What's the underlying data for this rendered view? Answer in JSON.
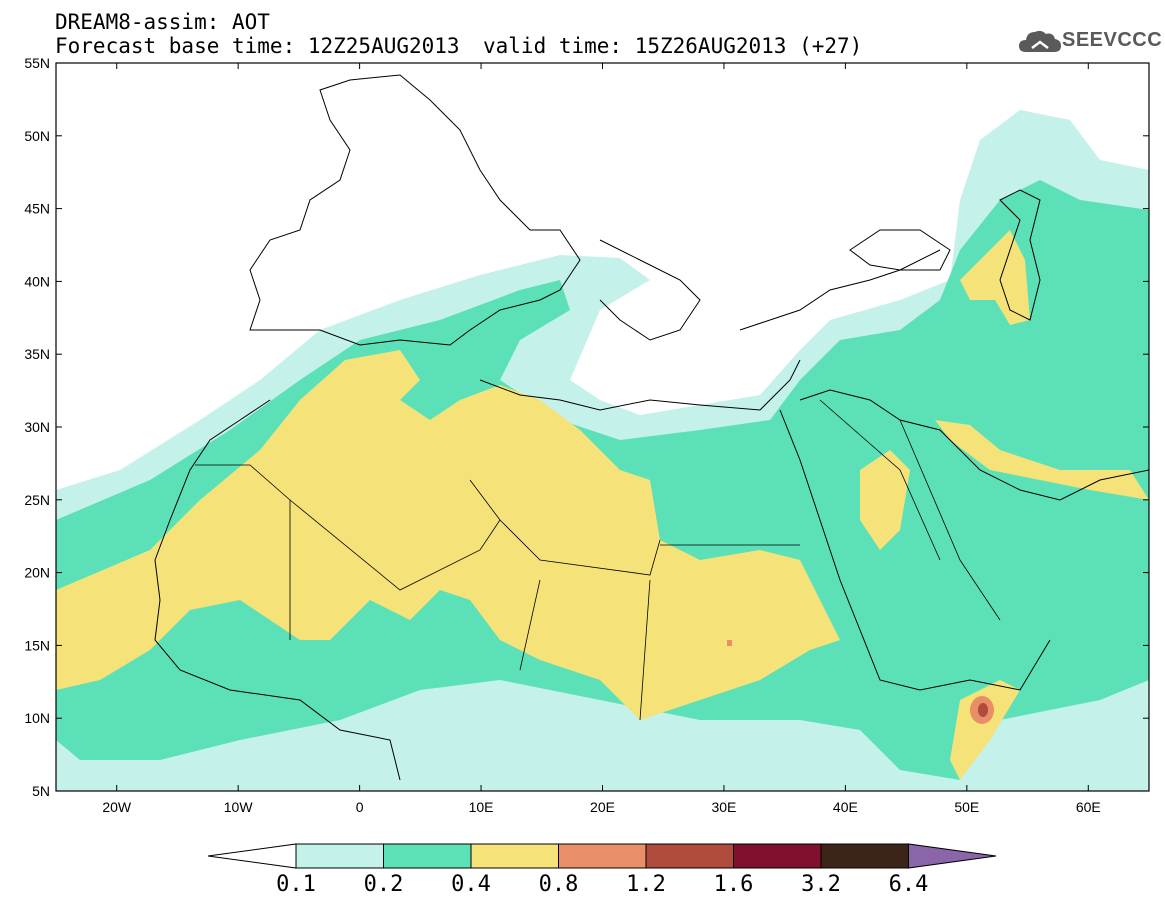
{
  "header": {
    "title": "DREAM8-assim: AOT",
    "base_time": "Forecast base time: 12Z25AUG2013",
    "valid_time": "valid time: 15Z26AUG2013 (+27)",
    "logo_text": "SEEVCCC",
    "logo_icon": "cloud-icon"
  },
  "map": {
    "lat_labels": [
      "55N",
      "50N",
      "45N",
      "40N",
      "35N",
      "30N",
      "25N",
      "20N",
      "15N",
      "10N",
      "5N"
    ],
    "lon_labels": [
      "20W",
      "10W",
      "0",
      "10E",
      "20E",
      "30E",
      "40E",
      "50E",
      "60E"
    ],
    "lon_range": [
      -25,
      65
    ],
    "lat_range": [
      5,
      55
    ]
  },
  "colorbar": {
    "levels": [
      "0.1",
      "0.2",
      "0.4",
      "0.8",
      "1.2",
      "1.6",
      "3.2",
      "6.4"
    ],
    "colors": {
      "below": "#ffffff",
      "c1": "#c4f1e9",
      "c2": "#5ce0b8",
      "c3": "#f5e37a",
      "c4": "#e88f67",
      "c5": "#b04c3c",
      "c6": "#80112e",
      "c7": "#3c2418",
      "above": "#8a66a8"
    }
  }
}
